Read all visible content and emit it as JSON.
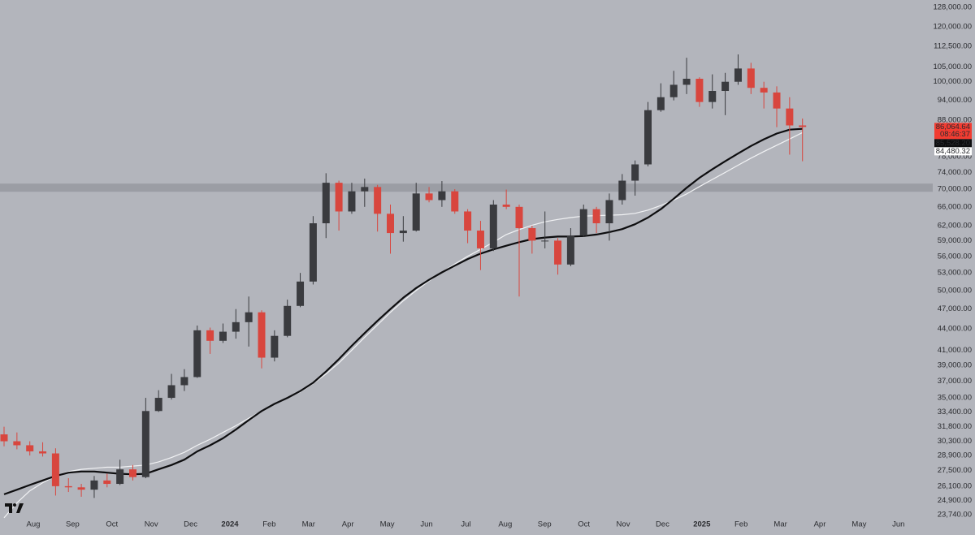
{
  "chart_data": {
    "type": "candlestick",
    "y_scale": "log",
    "ylim": [
      23360,
      131200
    ],
    "yticks": [
      {
        "value": 128000,
        "label": "128,000.00"
      },
      {
        "value": 120000,
        "label": "120,000.00"
      },
      {
        "value": 112500,
        "label": "112,500.00"
      },
      {
        "value": 105000,
        "label": "105,000.00"
      },
      {
        "value": 100000,
        "label": "100,000.00"
      },
      {
        "value": 94000,
        "label": "94,000.00"
      },
      {
        "value": 88000,
        "label": "88,000.00"
      },
      {
        "value": 78000,
        "label": "78,000.00"
      },
      {
        "value": 74000,
        "label": "74,000.00"
      },
      {
        "value": 70000,
        "label": "70,000.00"
      },
      {
        "value": 66000,
        "label": "66,000.00"
      },
      {
        "value": 62000,
        "label": "62,000.00"
      },
      {
        "value": 59000,
        "label": "59,000.00"
      },
      {
        "value": 56000,
        "label": "56,000.00"
      },
      {
        "value": 53000,
        "label": "53,000.00"
      },
      {
        "value": 50000,
        "label": "50,000.00"
      },
      {
        "value": 47000,
        "label": "47,000.00"
      },
      {
        "value": 44000,
        "label": "44,000.00"
      },
      {
        "value": 41000,
        "label": "41,000.00"
      },
      {
        "value": 39000,
        "label": "39,000.00"
      },
      {
        "value": 37000,
        "label": "37,000.00"
      },
      {
        "value": 35000,
        "label": "35,000.00"
      },
      {
        "value": 33400,
        "label": "33,400.00"
      },
      {
        "value": 31800,
        "label": "31,800.00"
      },
      {
        "value": 30300,
        "label": "30,300.00"
      },
      {
        "value": 28900,
        "label": "28,900.00"
      },
      {
        "value": 27500,
        "label": "27,500.00"
      },
      {
        "value": 26100,
        "label": "26,100.00"
      },
      {
        "value": 24900,
        "label": "24,900.00"
      },
      {
        "value": 23740,
        "label": "23,740.00"
      }
    ],
    "x_labels": [
      "Aug",
      "Sep",
      "Oct",
      "Nov",
      "Dec",
      "2024",
      "Feb",
      "Mar",
      "Apr",
      "May",
      "Jun",
      "Jul",
      "Aug",
      "Sep",
      "Oct",
      "Nov",
      "Dec",
      "2025",
      "Feb",
      "Mar",
      "Apr",
      "May",
      "Jun"
    ],
    "up_color": "#3a3b3f",
    "down_color": "#d8463e",
    "zone": {
      "values": [
        69400,
        71300
      ],
      "color": "#9b9da4"
    },
    "candles": {
      "open": [
        31000,
        30300,
        29900,
        29300,
        29100,
        26100,
        26000,
        25800,
        26600,
        26300,
        27600,
        26900,
        33500,
        35000,
        36500,
        37500,
        43800,
        42300,
        43600,
        45000,
        46500,
        40000,
        43000,
        47500,
        51500,
        62500,
        71500,
        65000,
        69500,
        70500,
        64500,
        60500,
        61000,
        69000,
        67500,
        69500,
        65000,
        61000,
        57500,
        66500,
        66000,
        61500,
        59000,
        59000,
        54500,
        60000,
        65500,
        62500,
        67500,
        72000,
        76000,
        91000,
        95000,
        99000,
        101000,
        93500,
        97000,
        100000,
        104500,
        98000,
        96500,
        91500,
        86500
      ],
      "high": [
        31800,
        31200,
        30300,
        30200,
        29600,
        26800,
        26300,
        27000,
        27200,
        28500,
        28000,
        35000,
        35900,
        37900,
        38500,
        44500,
        44200,
        44800,
        47000,
        49000,
        46800,
        43800,
        48500,
        53000,
        64000,
        73800,
        72000,
        71500,
        72500,
        71000,
        66500,
        64000,
        71500,
        70500,
        71900,
        70000,
        65500,
        63000,
        67500,
        69900,
        66500,
        62000,
        65000,
        59500,
        61500,
        66500,
        66000,
        69000,
        73600,
        77000,
        93500,
        99500,
        103700,
        108300,
        101500,
        102500,
        103000,
        109500,
        106500,
        100000,
        98500,
        95000,
        88500
      ],
      "low": [
        29800,
        29500,
        28900,
        28800,
        25300,
        25600,
        25200,
        25100,
        26000,
        26200,
        26600,
        26800,
        33400,
        34800,
        35800,
        37400,
        40500,
        42000,
        42600,
        41500,
        38600,
        39500,
        42800,
        47300,
        51000,
        59500,
        61000,
        64500,
        66000,
        60800,
        56500,
        58800,
        60800,
        67000,
        66000,
        64500,
        58500,
        53500,
        57000,
        65500,
        49000,
        56500,
        57500,
        52700,
        54200,
        59800,
        60500,
        59000,
        66500,
        68500,
        75500,
        90500,
        94000,
        96000,
        92000,
        91500,
        89500,
        99000,
        96000,
        91500,
        86000,
        78500,
        76800
      ],
      "close": [
        30300,
        29900,
        29300,
        29100,
        26100,
        26000,
        25800,
        26600,
        26300,
        27600,
        26900,
        33500,
        35000,
        36500,
        37500,
        43800,
        42300,
        43600,
        45000,
        46500,
        40000,
        43000,
        47500,
        51500,
        62500,
        71500,
        65000,
        69500,
        70500,
        64500,
        60500,
        61000,
        69000,
        67500,
        69500,
        65000,
        61000,
        57500,
        66500,
        66000,
        61500,
        59000,
        59000,
        54500,
        60000,
        65500,
        62500,
        67500,
        72000,
        76000,
        91000,
        95000,
        99000,
        101000,
        93500,
        97000,
        100000,
        104500,
        98000,
        96500,
        91500,
        86500,
        86064.64
      ]
    },
    "moving_averages": [
      {
        "color": "#f1f2f4",
        "values": [
          23500,
          24700,
          25700,
          26400,
          27000,
          27400,
          27600,
          27700,
          27800,
          27800,
          27900,
          28000,
          28300,
          28700,
          29200,
          29900,
          30500,
          31200,
          31900,
          32700,
          33500,
          34300,
          35000,
          35700,
          36700,
          37900,
          39300,
          41000,
          42800,
          44600,
          46500,
          48300,
          50000,
          51600,
          53100,
          54600,
          56000,
          57300,
          58700,
          60200,
          61200,
          62100,
          62800,
          63300,
          63700,
          64000,
          64100,
          64200,
          64300,
          64600,
          65300,
          66300,
          67500,
          68900,
          70600,
          72300,
          74000,
          75800,
          77600,
          79300,
          81000,
          82700,
          84480.32
        ]
      },
      {
        "color": "#0d0d0f",
        "values": [
          25400,
          25800,
          26200,
          26600,
          27000,
          27300,
          27400,
          27400,
          27300,
          27200,
          27150,
          27200,
          27600,
          28000,
          28500,
          29300,
          29900,
          30600,
          31500,
          32500,
          33500,
          34300,
          35000,
          35800,
          36800,
          38200,
          39800,
          41600,
          43400,
          45200,
          47000,
          48800,
          50400,
          51800,
          53100,
          54300,
          55500,
          56500,
          57300,
          58000,
          58700,
          59300,
          59600,
          59800,
          59800,
          59900,
          60200,
          60700,
          61300,
          62300,
          63700,
          65500,
          67800,
          70300,
          72700,
          74800,
          76800,
          78800,
          80800,
          82600,
          84200,
          85300,
          85528.2
        ]
      }
    ],
    "last_price": {
      "value": 86064.64,
      "label": "86,064.64",
      "color": "#f23c31"
    },
    "countdown": "08:46:37",
    "ma_labels": [
      {
        "value": 85528.2,
        "label": "85,528.20",
        "color": "#0d0d0f",
        "text_color": "#ffffff"
      },
      {
        "value": 84480.32,
        "label": "84,480.32",
        "color": "#ffffff",
        "text_color": "#111111"
      }
    ]
  }
}
